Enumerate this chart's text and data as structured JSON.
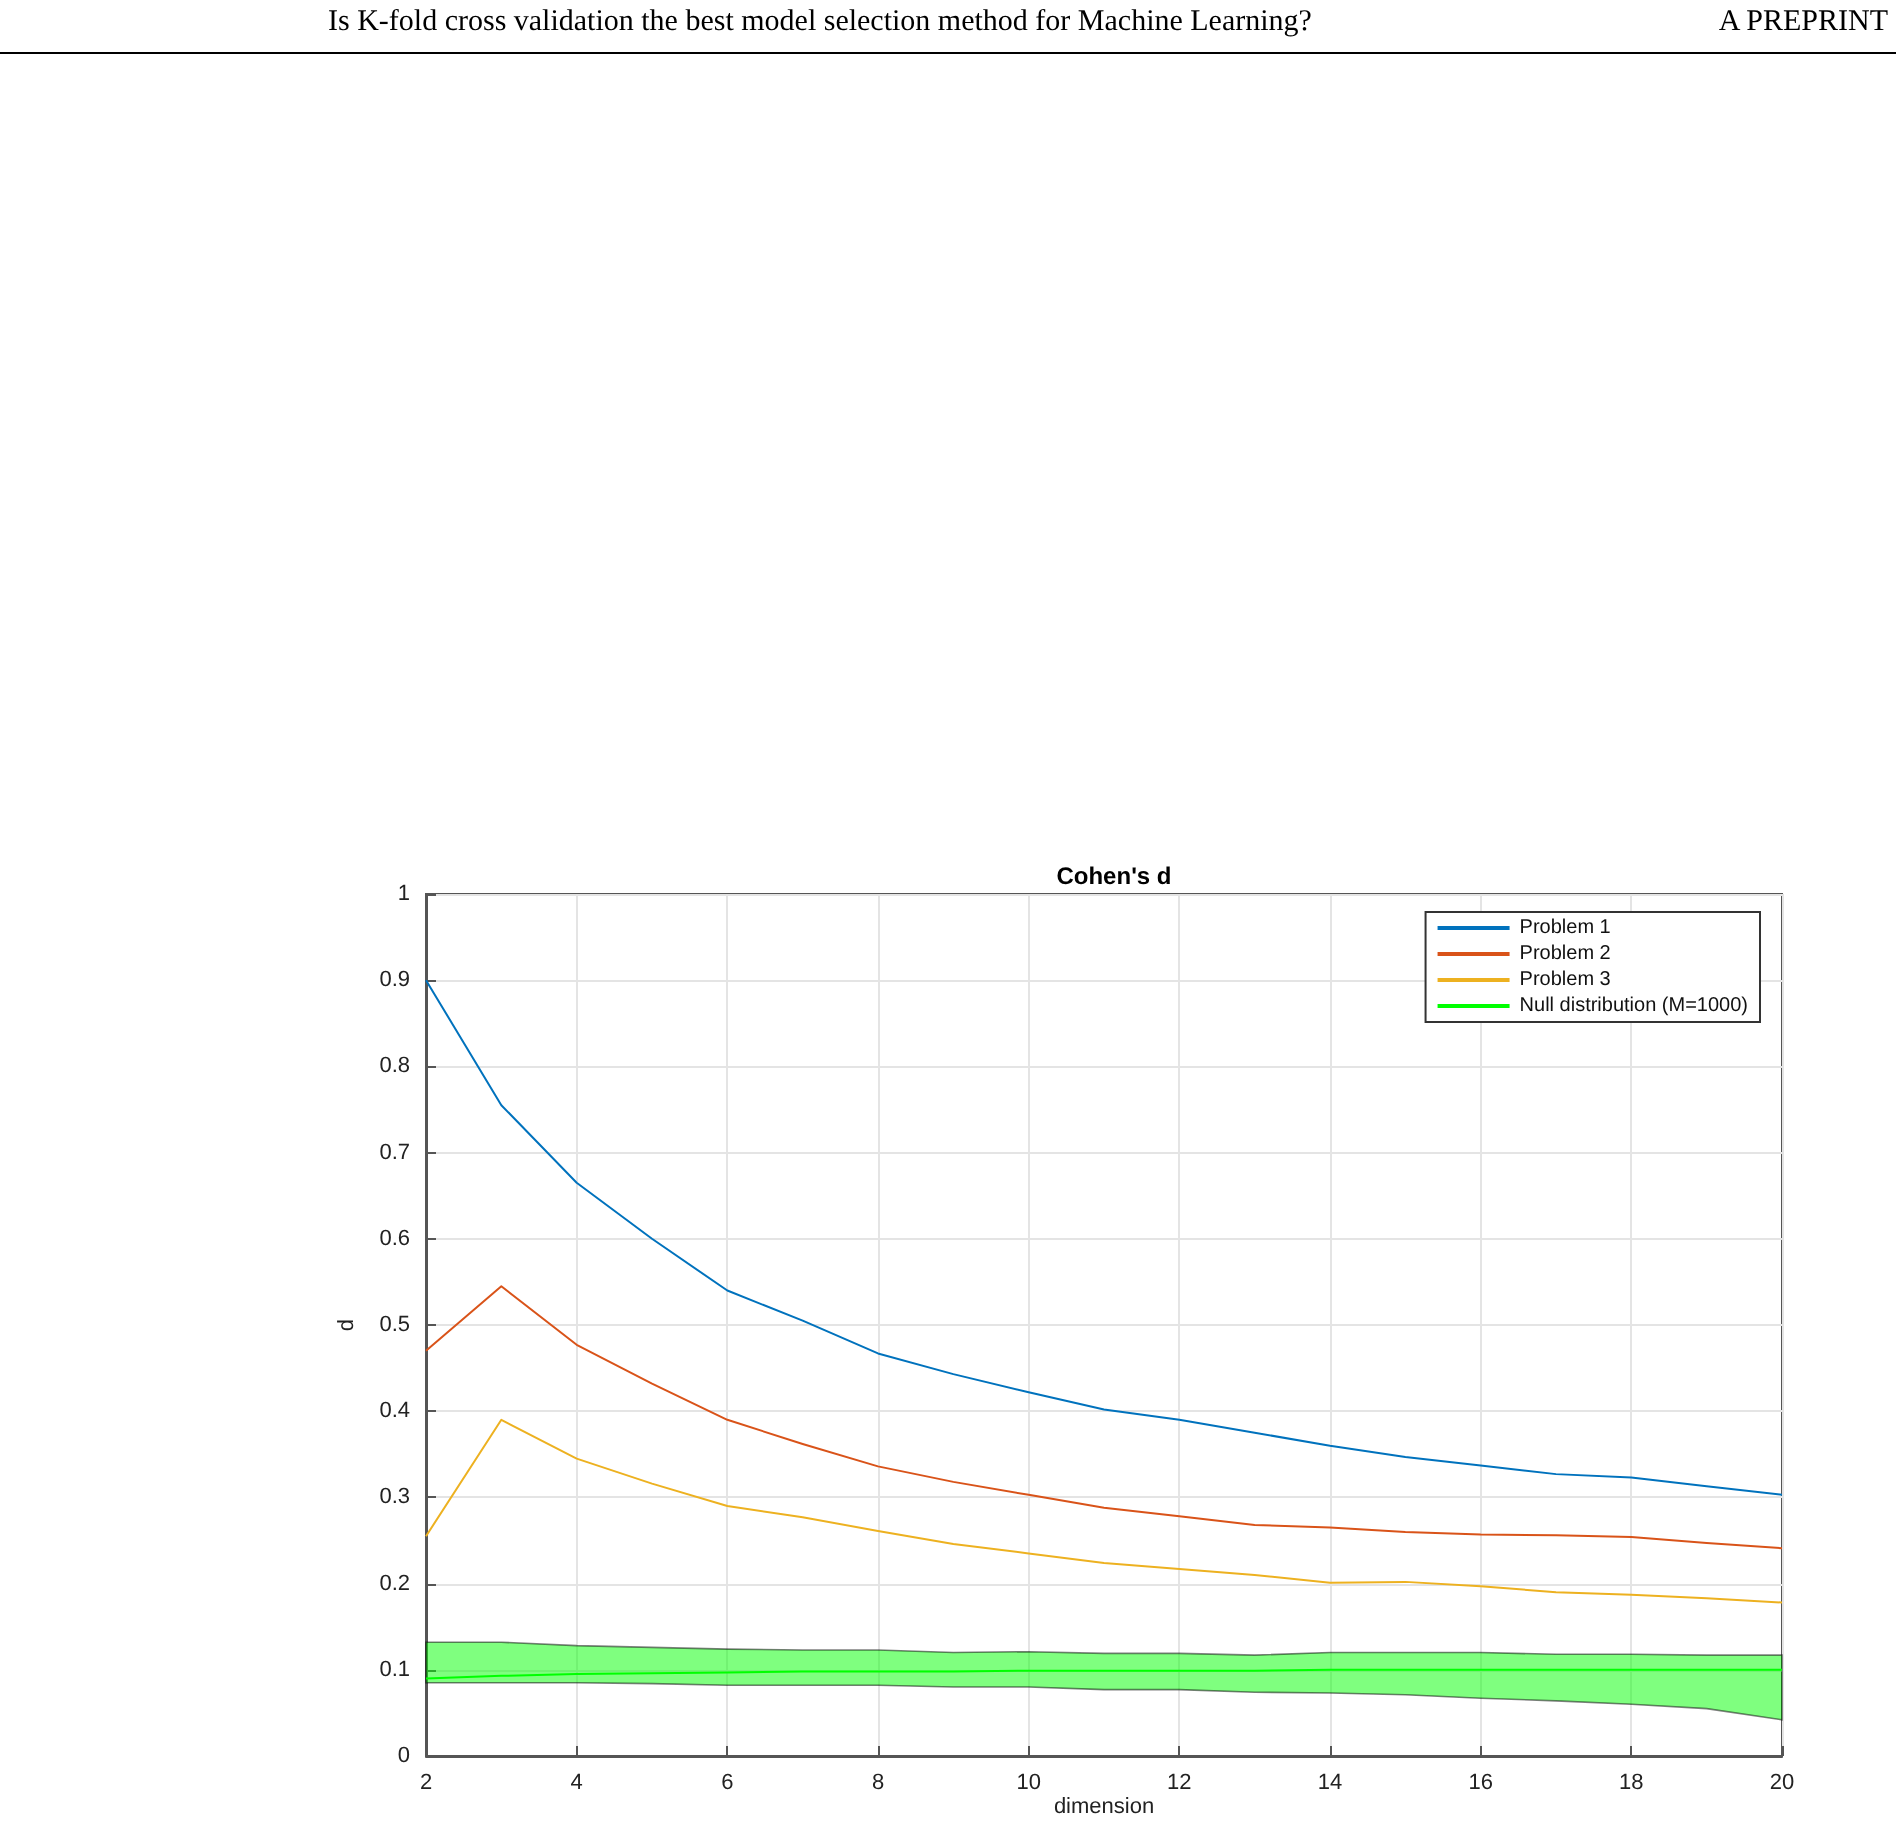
{
  "chart_data": {
    "type": "line",
    "title": "Cohen's d",
    "xlabel": "dimension",
    "ylabel": "d",
    "annotations": [
      "Is K-fold cross validation the best model selection method for Machine Learning?",
      "A PREPRINT"
    ],
    "x": [
      2,
      3,
      4,
      5,
      6,
      7,
      8,
      9,
      10,
      11,
      12,
      13,
      14,
      15,
      16,
      17,
      18,
      19,
      20
    ],
    "series": [
      {
        "name": "Problem 1",
        "color": "#0072bd",
        "values": [
          0.9,
          0.755,
          0.665,
          0.6,
          0.54,
          0.505,
          0.467,
          0.443,
          0.422,
          0.402,
          0.39,
          0.375,
          0.36,
          0.347,
          0.337,
          0.327,
          0.323,
          0.313,
          0.303
        ]
      },
      {
        "name": "Problem 2",
        "color": "#d95319",
        "values": [
          0.47,
          0.545,
          0.477,
          0.432,
          0.39,
          0.362,
          0.336,
          0.318,
          0.303,
          0.288,
          0.278,
          0.268,
          0.265,
          0.26,
          0.257,
          0.256,
          0.254,
          0.247,
          0.241
        ]
      },
      {
        "name": "Problem 3",
        "color": "#edb120",
        "values": [
          0.255,
          0.39,
          0.345,
          0.316,
          0.29,
          0.277,
          0.261,
          0.246,
          0.235,
          0.224,
          0.217,
          0.21,
          0.201,
          0.202,
          0.197,
          0.19,
          0.187,
          0.183,
          0.178
        ]
      },
      {
        "name": "Null distribution (M=1000)",
        "color": "#00ff00",
        "values": [
          0.09,
          0.093,
          0.095,
          0.096,
          0.097,
          0.098,
          0.098,
          0.098,
          0.099,
          0.099,
          0.099,
          0.099,
          0.1,
          0.1,
          0.1,
          0.1,
          0.1,
          0.1,
          0.1
        ],
        "lower": [
          0.085,
          0.085,
          0.085,
          0.084,
          0.082,
          0.082,
          0.082,
          0.08,
          0.08,
          0.077,
          0.077,
          0.074,
          0.073,
          0.071,
          0.067,
          0.064,
          0.06,
          0.055,
          0.042
        ],
        "upper": [
          0.132,
          0.132,
          0.128,
          0.126,
          0.124,
          0.123,
          0.123,
          0.12,
          0.121,
          0.119,
          0.119,
          0.117,
          0.12,
          0.12,
          0.12,
          0.118,
          0.118,
          0.117,
          0.117
        ]
      }
    ],
    "xlim": [
      2,
      20
    ],
    "xticks": [
      2,
      4,
      6,
      8,
      10,
      12,
      14,
      16,
      18,
      20
    ],
    "ylim": [
      0,
      1
    ],
    "yticks": [
      0,
      0.1,
      0.2,
      0.3,
      0.4,
      0.5,
      0.6,
      0.7,
      0.8,
      0.9,
      1
    ],
    "grid": true,
    "legend": "top right",
    "marker": "none",
    "line_style": "solid"
  }
}
